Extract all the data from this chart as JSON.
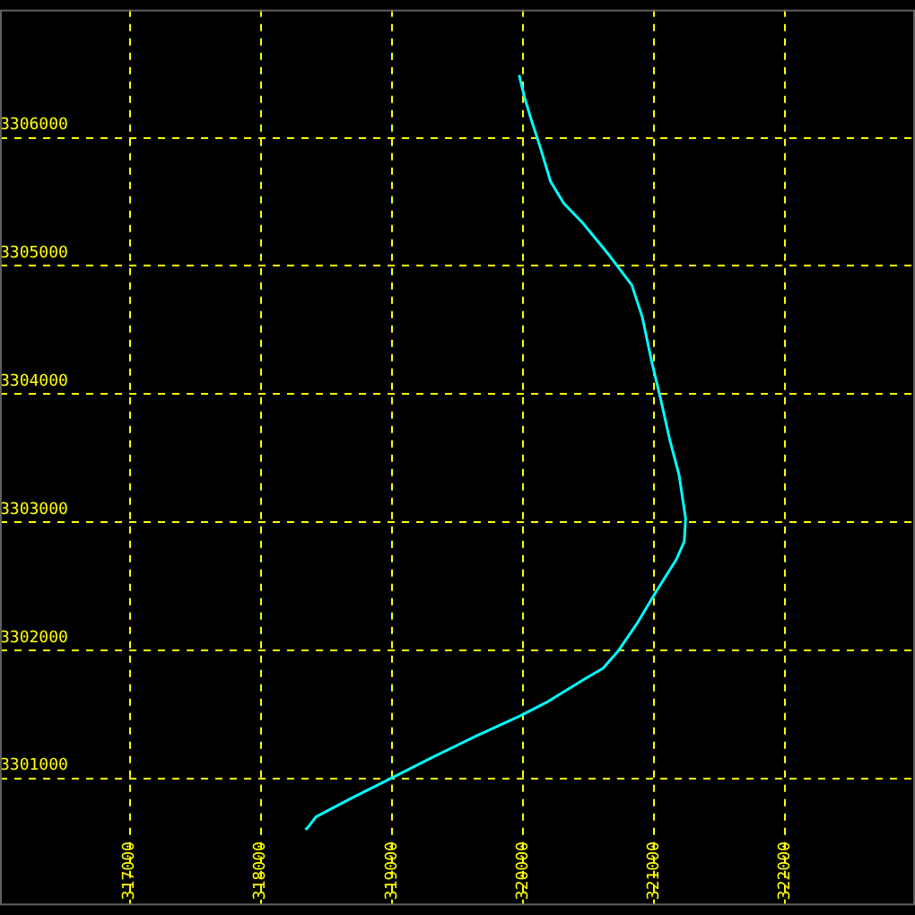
{
  "chart_data": {
    "type": "line",
    "x": [
      319970,
      320010,
      320060,
      320130,
      320210,
      320310,
      320460,
      320660,
      320830,
      320910,
      320980,
      321050,
      321120,
      321190,
      321240,
      321230,
      321170,
      321010,
      320870,
      320730,
      320610,
      320460,
      320190,
      319980,
      319640,
      319300,
      318990,
      318680,
      318420,
      318360,
      318340
    ],
    "series": [
      {
        "color": "#00ffff",
        "values": [
          3306490,
          3306320,
          3306150,
          3305930,
          3305660,
          3305490,
          3305330,
          3305080,
          3304850,
          3304600,
          3304260,
          3303960,
          3303640,
          3303370,
          3303030,
          3302850,
          3302710,
          3302450,
          3302210,
          3302000,
          3301860,
          3301770,
          3301600,
          3301490,
          3301330,
          3301160,
          3301000,
          3300840,
          3300700,
          3300620,
          3300600
        ]
      }
    ],
    "xlim": [
      316010,
      322990
    ],
    "ylim": [
      3300010,
      3307000
    ],
    "xticks": [
      317000,
      318000,
      319000,
      320000,
      321000,
      322000
    ],
    "yticks": [
      3301000,
      3302000,
      3303000,
      3304000,
      3305000,
      3306000
    ],
    "grid": true,
    "legend": false
  }
}
